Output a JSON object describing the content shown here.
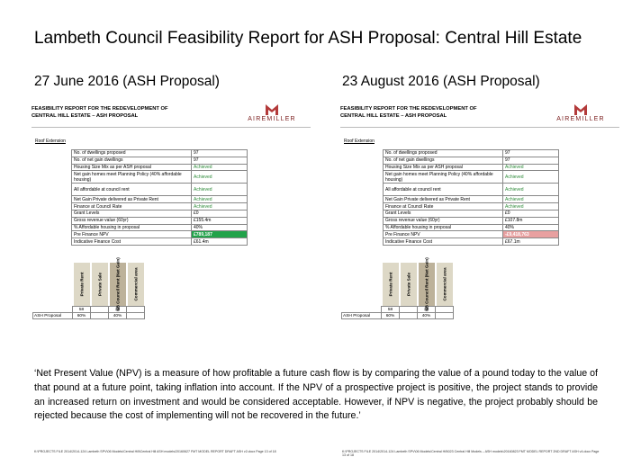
{
  "page": {
    "title": "Lambeth Council Feasibility Report for ASH Proposal: Central Hill Estate",
    "quote": "‘Net Present Value (NPV) is a measure of how profitable a future cash flow is by comparing the value of a pound today to the value of that pound at a future point, taking inflation into account. If the NPV of a prospective project is positive, the project stands to provide an increased return on investment and would be considered acceptable. However, if NPV is negative, the project probably should be rejected because the cost of implementing will not be recovered in the future.’"
  },
  "left": {
    "heading": "27 June 2016 (ASH Proposal)",
    "report_title_1": "FEASIBILITY REPORT FOR THE REDEVELOPMENT OF",
    "report_title_2": "CENTRAL HILL ESTATE – ASH PROPOSAL",
    "logo_text": "AIREMILLER",
    "roof_label": "Roof Extension",
    "rows": [
      {
        "label": "No. of dwellings proposed",
        "value": "97"
      },
      {
        "label": "No. of net gain dwellings",
        "value": "97"
      },
      {
        "label": "Housing Size Mix as per ASH proposal",
        "value": "Achieved"
      },
      {
        "label": "Net gain homes meet Planning Policy (40% affordable housing)",
        "value": "Achieved"
      },
      {
        "label": "All affordable at council rent",
        "value": "Achieved"
      },
      {
        "label": "Net Gain Private delivered as Private Rent",
        "value": "Achieved"
      },
      {
        "label": "Finance at Council Rate",
        "value": "Achieved"
      },
      {
        "label": "Grant Levels",
        "value": "£0"
      },
      {
        "label": "Gross revenue value (60yr)",
        "value": "£155.4m"
      },
      {
        "label": "% Affordable housing in proposal",
        "value": "40%"
      },
      {
        "label": "Pre Finance NPV",
        "value": "£789,187"
      },
      {
        "label": "Indicative Finance Cost",
        "value": "£61.4m"
      }
    ],
    "mix": {
      "cols": [
        "Private Rent",
        "Private Sale",
        "NB Council Rent (Net Gain)",
        "Commercial area"
      ],
      "row1": [
        "58",
        "",
        "39",
        ""
      ],
      "row_label": "ASH Proposal",
      "row2": [
        "60%",
        "",
        "40%",
        ""
      ]
    },
    "footer": "K:\\PROJECTS FILE 2014\\2014-124 Lambeth SPV\\06 Models\\Central Hill\\Central Hill ASH models\\20160627 FMT MODEL REPORT DRAFT ASH v2.docx      Page 13 of 18"
  },
  "right": {
    "heading": "23 August 2016 (ASH Proposal)",
    "report_title_1": "FEASIBILITY REPORT FOR THE REDEVELOPMENT OF",
    "report_title_2": "CENTRAL HILL ESTATE – ASH PROPOSAL",
    "logo_text": "AIREMILLER",
    "roof_label": "Roof Extension",
    "rows": [
      {
        "label": "No. of dwellings proposed",
        "value": "97"
      },
      {
        "label": "No. of net gain dwellings",
        "value": "97"
      },
      {
        "label": "Housing Size Mix as per ASH proposal",
        "value": "Achieved"
      },
      {
        "label": "Net gain homes meet Planning Policy (40% affordable housing)",
        "value": "Achieved"
      },
      {
        "label": "All affordable at council rent",
        "value": "Achieved"
      },
      {
        "label": "Net Gain Private delivered as Private Rent",
        "value": "Achieved"
      },
      {
        "label": "Finance at Council Rate",
        "value": "Achieved"
      },
      {
        "label": "Grant Levels",
        "value": "£0"
      },
      {
        "label": "Gross revenue value (60yr)",
        "value": "£107.8m"
      },
      {
        "label": "% Affordable housing in proposal",
        "value": "40%"
      },
      {
        "label": "Pre Finance NPV",
        "value": "-£9,418,763"
      },
      {
        "label": "Indicative Finance Cost",
        "value": "£67.1m"
      }
    ],
    "mix": {
      "cols": [
        "Private Rent",
        "Private Sale",
        "NB Council Rent (Net Gain)",
        "Commercial area"
      ],
      "row1": [
        "58",
        "",
        "39",
        ""
      ],
      "row_label": "ASH Proposal",
      "row2": [
        "60%",
        "",
        "40%",
        ""
      ]
    },
    "footer": "K:\\PROJECTS FILE 2014\\2014-124 Lambeth SPV\\06 Models\\Central Hill\\023 Central Hill Models – ASH models\\20160823 FMT MODEL REPORT 2ND DRAFT ASH v4.docx      Page 13 of 18"
  },
  "colors": {
    "achieved": "#2e8b3a",
    "npv_positive": "#22a34a",
    "npv_negative": "#e8a0a0",
    "logo": "#7a1c1c"
  }
}
